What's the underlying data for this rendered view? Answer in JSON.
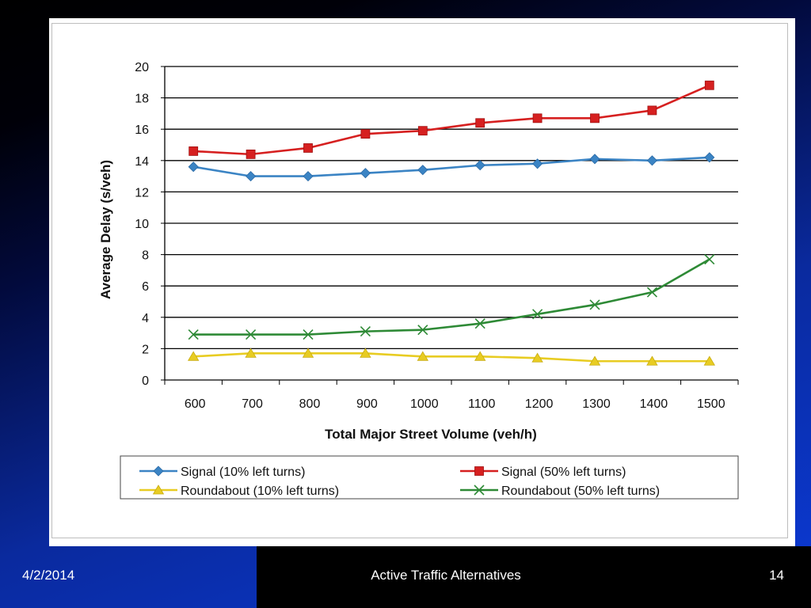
{
  "footer": {
    "date": "4/2/2014",
    "title": "Active Traffic Alternatives",
    "page_number": "14"
  },
  "colors": {
    "signal_10": "#3b84c4",
    "signal_50": "#d62020",
    "roundabout_10": "#e8cc22",
    "roundabout_50": "#2e8a36"
  },
  "chart_data": {
    "type": "line",
    "title": "",
    "xlabel": "Total Major Street Volume (veh/h)",
    "ylabel": "Average Delay (s/veh)",
    "categories": [
      "600",
      "700",
      "800",
      "900",
      "1000",
      "1100",
      "1200",
      "1300",
      "1400",
      "1500"
    ],
    "yticks": [
      "0",
      "2",
      "4",
      "6",
      "8",
      "10",
      "12",
      "14",
      "16",
      "18",
      "20"
    ],
    "ylim": [
      0,
      20
    ],
    "grid": "horizontal",
    "legend_position": "bottom",
    "series": [
      {
        "name": "Signal (10% left turns)",
        "marker": "diamond",
        "color": "#3b84c4",
        "values": [
          13.6,
          13.0,
          13.0,
          13.2,
          13.4,
          13.7,
          13.8,
          14.1,
          14.0,
          14.2
        ]
      },
      {
        "name": "Signal (50% left turns)",
        "marker": "square",
        "color": "#d62020",
        "values": [
          14.6,
          14.4,
          14.8,
          15.7,
          15.9,
          16.4,
          16.7,
          16.7,
          17.2,
          18.8
        ]
      },
      {
        "name": "Roundabout (10% left turns)",
        "marker": "triangle",
        "color": "#e8cc22",
        "values": [
          1.5,
          1.7,
          1.7,
          1.7,
          1.5,
          1.5,
          1.4,
          1.2,
          1.2,
          1.2
        ]
      },
      {
        "name": "Roundabout (50% left turns)",
        "marker": "x",
        "color": "#2e8a36",
        "values": [
          2.9,
          2.9,
          2.9,
          3.1,
          3.2,
          3.6,
          4.2,
          4.8,
          5.6,
          7.7
        ]
      }
    ]
  }
}
